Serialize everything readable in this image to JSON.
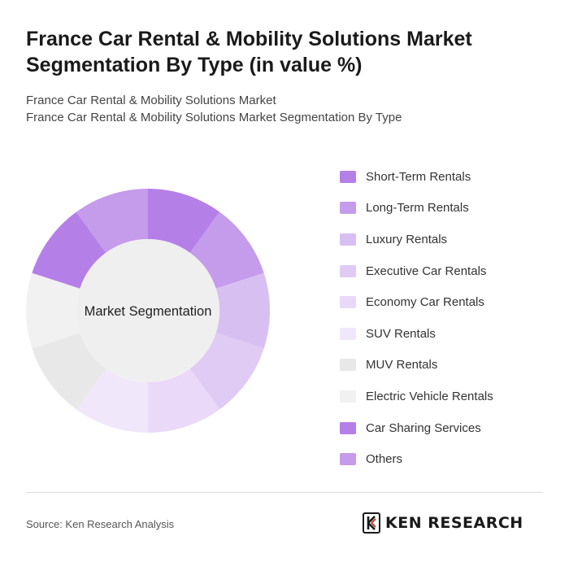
{
  "header": {
    "title": "France Car Rental & Mobility Solutions Market Segmentation By Type (in value %)",
    "subtitle_line1": "France Car Rental & Mobility Solutions Market",
    "subtitle_line2": "France Car Rental & Mobility Solutions Market Segmentation By Type"
  },
  "chart_data": {
    "type": "pie",
    "variant": "donut",
    "center_label": "Market Segmentation",
    "legend_position": "right",
    "categories": [
      "Short-Term Rentals",
      "Long-Term Rentals",
      "Luxury Rentals",
      "Executive Car Rentals",
      "Economy Car Rentals",
      "SUV Rentals",
      "MUV Rentals",
      "Electric Vehicle Rentals",
      "Car Sharing Services",
      "Others"
    ],
    "values": [
      10,
      10,
      10,
      10,
      10,
      10,
      10,
      10,
      10,
      10
    ],
    "colors": [
      "#b57fe8",
      "#c59bec",
      "#d8bff2",
      "#e0cbf4",
      "#ead9f8",
      "#f1e7fa",
      "#e8e8e8",
      "#f1f1f1",
      "#b57fe8",
      "#c59bec"
    ]
  },
  "footer": {
    "source": "Source: Ken Research Analysis",
    "logo_text": "KEN RESEARCH",
    "logo_icon": "ken-research-logo-icon"
  }
}
